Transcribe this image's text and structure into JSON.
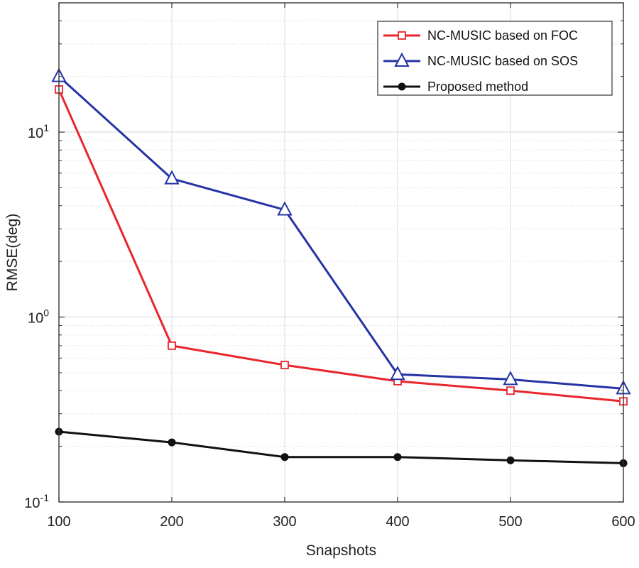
{
  "chart_data": {
    "type": "line",
    "title": "",
    "xlabel": "Snapshots",
    "ylabel": "RMSE(deg)",
    "x": [
      100,
      200,
      300,
      400,
      500,
      600
    ],
    "x_ticks": [
      "100",
      "200",
      "300",
      "400",
      "500",
      "600"
    ],
    "xlim": [
      100,
      600
    ],
    "yscale": "log",
    "ylim": [
      0.1,
      50
    ],
    "y_ticks": [
      {
        "value": 0.1,
        "base": "10",
        "exp": "-1"
      },
      {
        "value": 1,
        "base": "10",
        "exp": "0"
      },
      {
        "value": 10,
        "base": "10",
        "exp": "1"
      }
    ],
    "grid": true,
    "legend_position": "top-right",
    "series": [
      {
        "name": "NC-MUSIC based on FOC",
        "color": "#e8262b",
        "marker": "square",
        "values": [
          17,
          0.7,
          0.55,
          0.45,
          0.4,
          0.35
        ]
      },
      {
        "name": "NC-MUSIC based on SOS",
        "color": "#2533a5",
        "marker": "triangle",
        "values": [
          20,
          5.6,
          3.8,
          0.49,
          0.46,
          0.41
        ]
      },
      {
        "name": "Proposed method",
        "color": "#111111",
        "marker": "circle",
        "values": [
          0.24,
          0.21,
          0.175,
          0.175,
          0.168,
          0.162
        ]
      }
    ]
  }
}
